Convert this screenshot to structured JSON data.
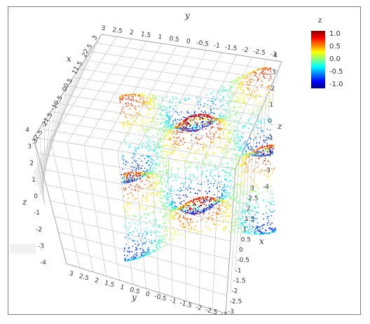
{
  "chart_data": {
    "type": "scatter",
    "title": "",
    "xlabel": "x",
    "ylabel": "y",
    "zlabel": "z",
    "xlim": [
      -3,
      3
    ],
    "ylim": [
      -3,
      3
    ],
    "zlim": [
      -4,
      4
    ],
    "x_ticks": [
      "3",
      "2.5",
      "2",
      "1.5",
      "1",
      "0.5",
      "0",
      "-0.5",
      "-1",
      "-1.5",
      "-2",
      "-2.5",
      "-3"
    ],
    "y_ticks": [
      "3",
      "2.5",
      "2",
      "1.5",
      "1",
      "0.5",
      "0",
      "-0.5",
      "-1",
      "-1.5",
      "-2",
      "-2.5",
      "-3"
    ],
    "z_ticks": [
      "4",
      "3",
      "2",
      "1",
      "0",
      "-1",
      "-2",
      "-3",
      "-4"
    ],
    "colorbar": {
      "title": "z",
      "ticks": [
        "1.0",
        "0.5",
        "0.0",
        "-0.5",
        "-1.0"
      ],
      "range": [
        -1.0,
        1.0
      ],
      "colormap": "jet"
    }
  }
}
